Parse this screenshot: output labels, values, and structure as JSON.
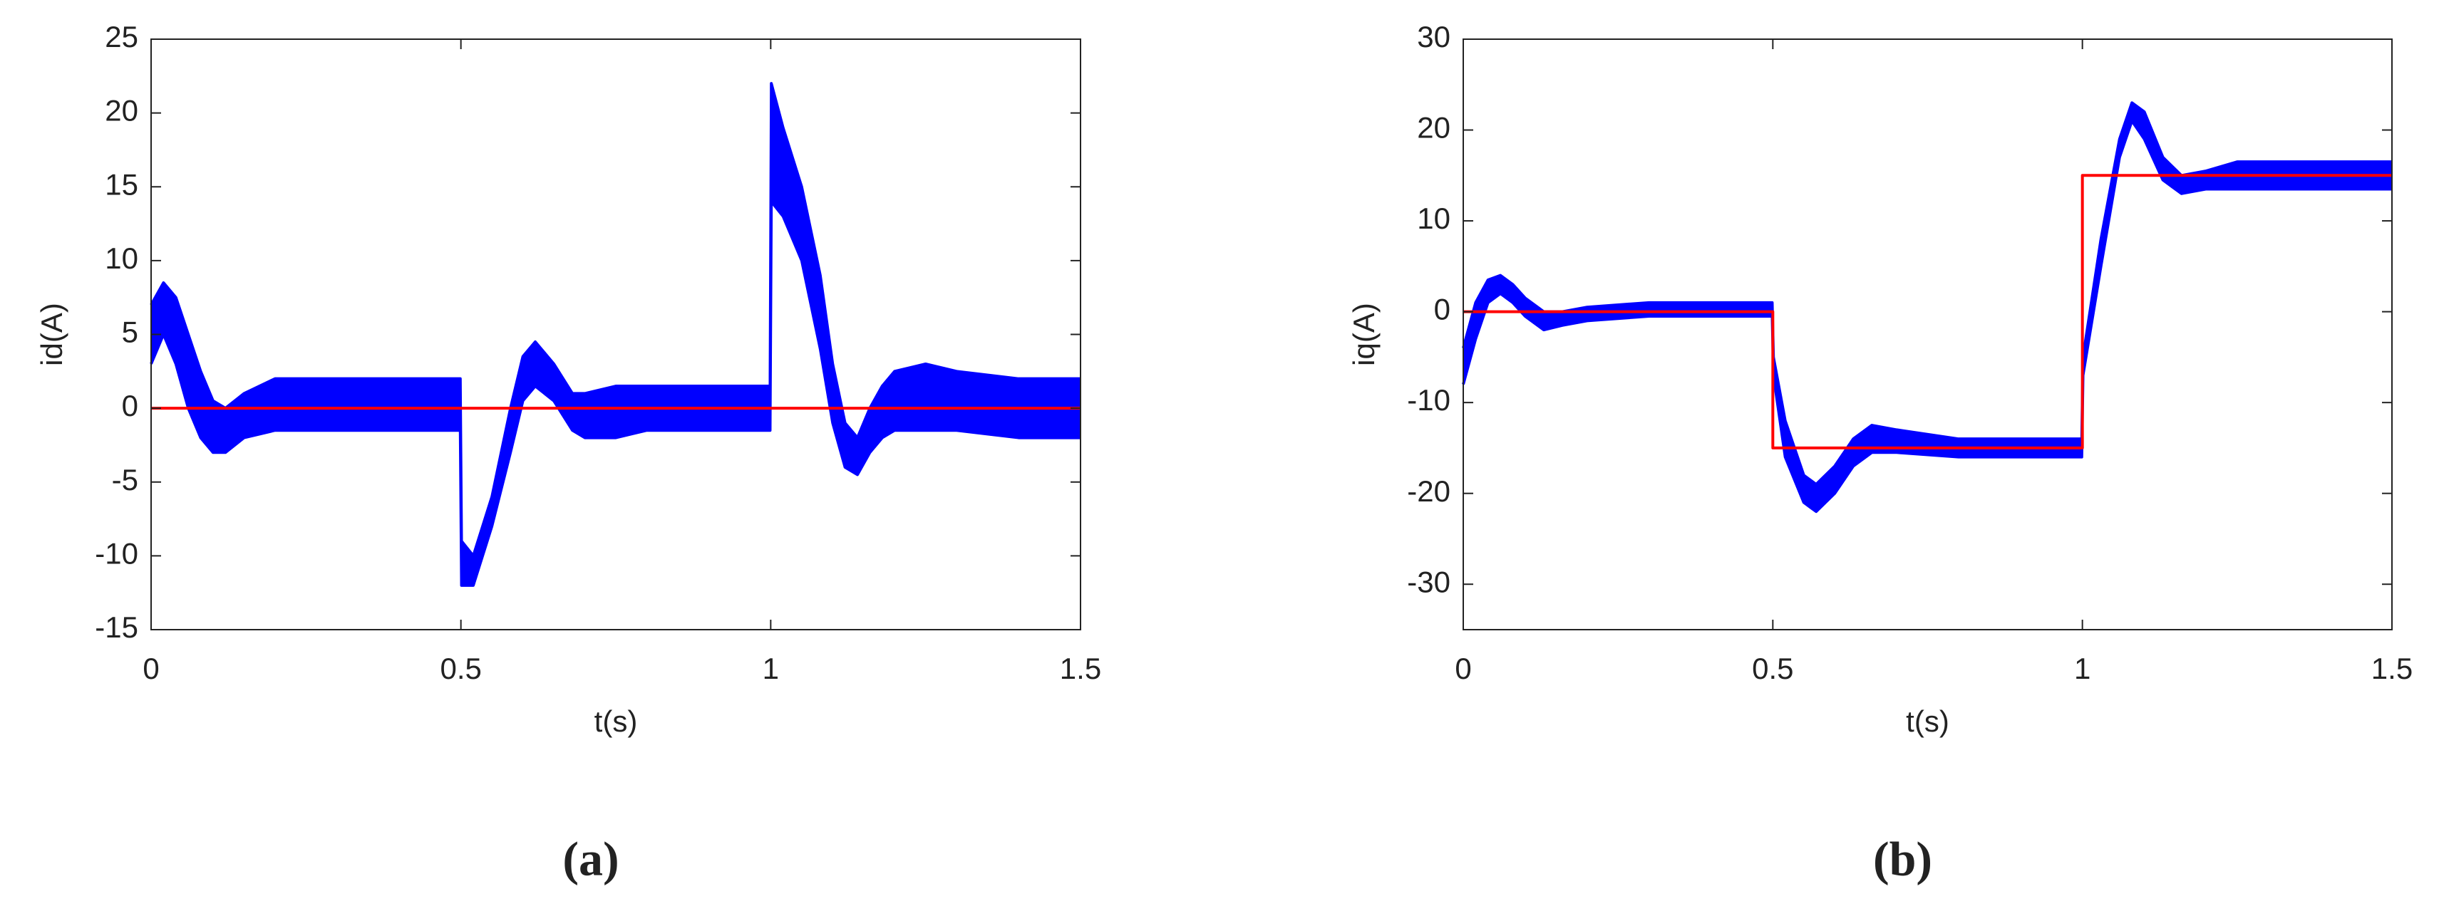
{
  "chart_data": [
    {
      "type": "line",
      "xlabel": "t(s)",
      "ylabel": "id(A)",
      "caption": "(a)",
      "xlim": [
        0,
        1.5
      ],
      "xticks": [
        0,
        0.5,
        1,
        1.5
      ],
      "ylim": [
        -15,
        25
      ],
      "yticks": [
        -15,
        -10,
        -5,
        0,
        5,
        10,
        15,
        20,
        25
      ],
      "series": [
        {
          "color": "#0000ff",
          "x": [
            0,
            0.02,
            0.04,
            0.06,
            0.08,
            0.1,
            0.12,
            0.15,
            0.2,
            0.3,
            0.4,
            0.499,
            0.501,
            0.52,
            0.55,
            0.58,
            0.6,
            0.62,
            0.65,
            0.68,
            0.7,
            0.75,
            0.8,
            0.9,
            0.999,
            1.001,
            1.02,
            1.05,
            1.08,
            1.1,
            1.12,
            1.14,
            1.16,
            1.18,
            1.2,
            1.25,
            1.3,
            1.4,
            1.5
          ],
          "values": [
            7,
            8.5,
            7.5,
            5,
            2.5,
            0.5,
            0,
            1,
            2,
            2,
            2,
            2,
            -9,
            -10,
            -6,
            0,
            3.5,
            4.5,
            3,
            1,
            1,
            1.5,
            1.5,
            1.5,
            1.5,
            22,
            19,
            15,
            9,
            3,
            -1,
            -2,
            0,
            1.5,
            2.5,
            3,
            2.5,
            2,
            2
          ]
        },
        {
          "color": "#0000ff",
          "x": [
            0,
            0.02,
            0.04,
            0.06,
            0.08,
            0.1,
            0.12,
            0.15,
            0.2,
            0.3,
            0.4,
            0.499,
            0.501,
            0.52,
            0.55,
            0.58,
            0.6,
            0.62,
            0.65,
            0.68,
            0.7,
            0.75,
            0.8,
            0.9,
            0.999,
            1.001,
            1.02,
            1.05,
            1.08,
            1.1,
            1.12,
            1.14,
            1.16,
            1.18,
            1.2,
            1.25,
            1.3,
            1.4,
            1.5
          ],
          "values": [
            3,
            5,
            3,
            0,
            -2,
            -3,
            -3,
            -2,
            -1.5,
            -1.5,
            -1.5,
            -1.5,
            -12,
            -12,
            -8,
            -3,
            0.5,
            1.5,
            0.5,
            -1.5,
            -2,
            -2,
            -1.5,
            -1.5,
            -1.5,
            14,
            13,
            10,
            4,
            -1,
            -4,
            -4.5,
            -3,
            -2,
            -1.5,
            -1.5,
            -1.5,
            -2,
            -2
          ]
        },
        {
          "color": "#ff0000",
          "x": [
            0,
            1.5
          ],
          "values": [
            0,
            0
          ]
        }
      ]
    },
    {
      "type": "line",
      "xlabel": "t(s)",
      "ylabel": "iq(A)",
      "caption": "(b)",
      "xlim": [
        0,
        1.5
      ],
      "xticks": [
        0,
        0.5,
        1,
        1.5
      ],
      "ylim": [
        -35,
        30
      ],
      "yticks": [
        -30,
        -20,
        -10,
        0,
        10,
        20,
        30
      ],
      "series": [
        {
          "color": "#0000ff",
          "x": [
            0,
            0.02,
            0.04,
            0.06,
            0.08,
            0.1,
            0.13,
            0.16,
            0.2,
            0.3,
            0.4,
            0.499,
            0.501,
            0.52,
            0.55,
            0.57,
            0.6,
            0.63,
            0.66,
            0.7,
            0.8,
            0.9,
            0.999,
            1.001,
            1.03,
            1.06,
            1.08,
            1.1,
            1.13,
            1.16,
            1.2,
            1.25,
            1.3,
            1.4,
            1.5
          ],
          "values": [
            -4,
            1,
            3.5,
            4,
            3,
            1.5,
            0,
            0,
            0.5,
            1,
            1,
            1,
            -5,
            -12,
            -18,
            -19,
            -17,
            -14,
            -12.5,
            -13,
            -14,
            -14,
            -14,
            -5,
            8,
            19,
            23,
            22,
            17,
            15,
            15.5,
            16.5,
            16.5,
            16.5,
            16.5
          ]
        },
        {
          "color": "#0000ff",
          "x": [
            0,
            0.02,
            0.04,
            0.06,
            0.08,
            0.1,
            0.13,
            0.16,
            0.2,
            0.3,
            0.4,
            0.499,
            0.501,
            0.52,
            0.55,
            0.57,
            0.6,
            0.63,
            0.66,
            0.7,
            0.8,
            0.9,
            0.999,
            1.001,
            1.03,
            1.06,
            1.08,
            1.1,
            1.13,
            1.16,
            1.2,
            1.25,
            1.3,
            1.4,
            1.5
          ],
          "values": [
            -8,
            -3,
            1,
            2,
            1,
            -0.5,
            -2,
            -1.5,
            -1,
            -0.5,
            -0.5,
            -0.5,
            -7,
            -16,
            -21,
            -22,
            -20,
            -17,
            -15.5,
            -15.5,
            -16,
            -16,
            -16,
            -7,
            5,
            17,
            21,
            19,
            14.5,
            13,
            13.5,
            13.5,
            13.5,
            13.5,
            13.5
          ]
        },
        {
          "color": "#ff0000",
          "x": [
            0,
            0.5,
            0.5,
            1,
            1,
            1.5
          ],
          "values": [
            0,
            0,
            -15,
            -15,
            15,
            15
          ]
        }
      ]
    }
  ]
}
